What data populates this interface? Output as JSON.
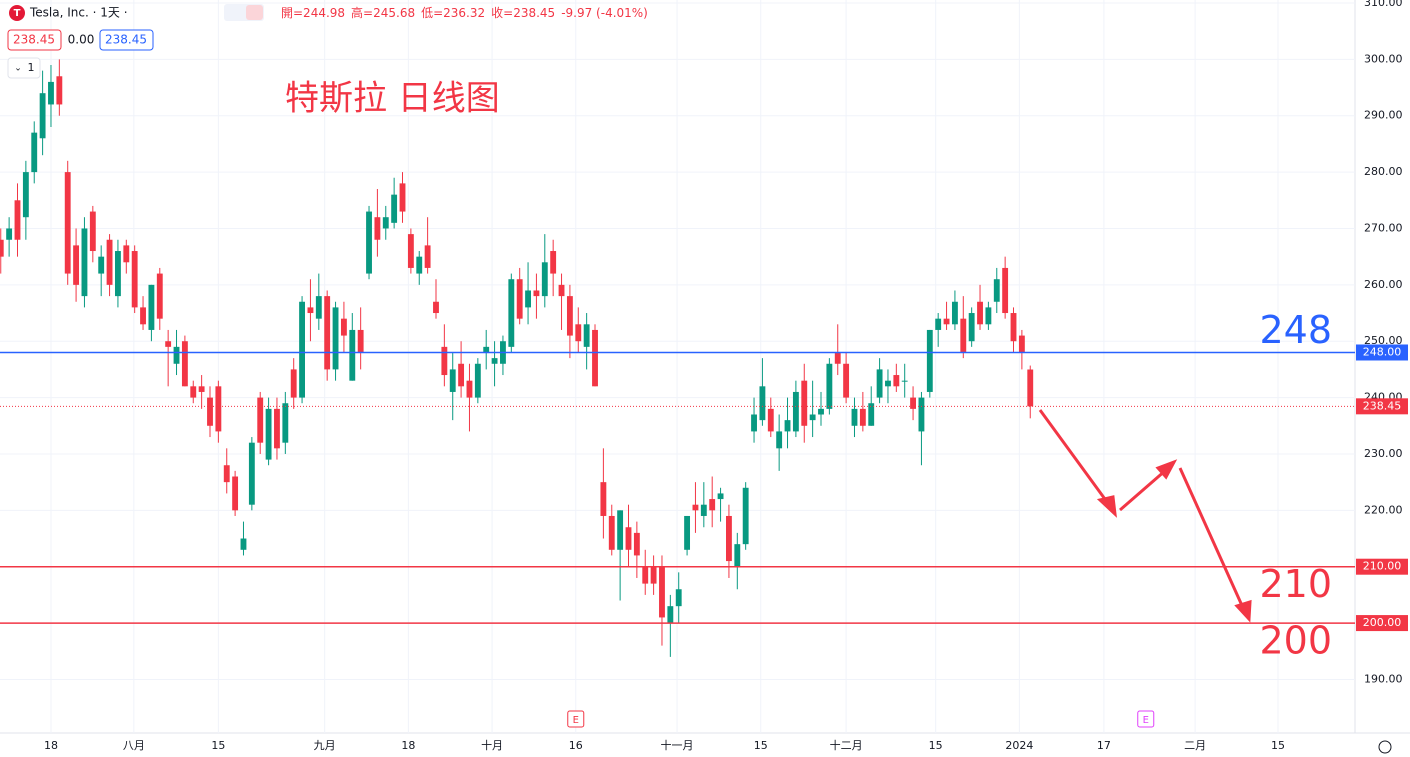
{
  "header": {
    "symbol": "Tesla, Inc. · 1天 ·",
    "ohlc": [
      "開=244.98",
      "高=245.68",
      "低=236.32",
      "收=238.45"
    ],
    "change": "-9.97 (-4.01%)",
    "price_boxes": [
      "238.45",
      "0.00",
      "238.45"
    ],
    "interval": "1"
  },
  "chart_data": {
    "type": "candlestick",
    "title": "特斯拉 日线图",
    "up_color": "#089981",
    "down_color": "#f23645",
    "xlim": [
      -6.09,
      155.8
    ],
    "ylim": [
      180.5,
      310.53
    ],
    "grid": true,
    "yticks": [
      {
        "value": 190,
        "label": "190.00"
      },
      {
        "value": 200,
        "label": "200.00"
      },
      {
        "value": 210,
        "label": "210.00"
      },
      {
        "value": 220,
        "label": "220.00"
      },
      {
        "value": 230,
        "label": "230.00"
      },
      {
        "value": 240,
        "label": "240.00"
      },
      {
        "value": 250,
        "label": "250.00"
      },
      {
        "value": 260,
        "label": "260.00"
      },
      {
        "value": 270,
        "label": "270.00"
      },
      {
        "value": 280,
        "label": "280.00"
      },
      {
        "value": 290,
        "label": "290.00"
      },
      {
        "value": 300,
        "label": "300.00"
      },
      {
        "value": 310,
        "label": "310.00"
      }
    ],
    "xticks": [
      {
        "value": 0,
        "label": "18"
      },
      {
        "value": 9.9,
        "label": "八月"
      },
      {
        "value": 20,
        "label": "15"
      },
      {
        "value": 32.7,
        "label": "九月"
      },
      {
        "value": 42.7,
        "label": "18"
      },
      {
        "value": 52.7,
        "label": "十月"
      },
      {
        "value": 62.7,
        "label": "16"
      },
      {
        "value": 74.8,
        "label": "十一月"
      },
      {
        "value": 84.8,
        "label": "15"
      },
      {
        "value": 95,
        "label": "十二月"
      },
      {
        "value": 105.7,
        "label": "15"
      },
      {
        "value": 115.7,
        "label": "2024"
      },
      {
        "value": 125.8,
        "label": "17"
      },
      {
        "value": 136.7,
        "label": "二月"
      },
      {
        "value": 146.6,
        "label": "15"
      }
    ],
    "horizontal_lines": [
      {
        "value": 248,
        "label": "248.00",
        "note": "248",
        "color": "#2962ff"
      },
      {
        "value": 210,
        "label": "210.00",
        "note": "210",
        "color": "#f23645"
      },
      {
        "value": 200,
        "label": "200.00",
        "note": "200",
        "color": "#f23645"
      }
    ],
    "last_price": {
      "value": 238.45,
      "label": "238.45",
      "color": "#f23645"
    },
    "events": [
      {
        "x": 62.7,
        "label": "E",
        "color": "#f23645"
      },
      {
        "x": 130.8,
        "label": "E",
        "color": "#e040fb"
      }
    ],
    "x": [
      -6,
      -5,
      -4,
      -3,
      -2,
      -1,
      0,
      1,
      2,
      3,
      4,
      5,
      6,
      7,
      8,
      9,
      10,
      11,
      12,
      13,
      14,
      15,
      16,
      17,
      18,
      19,
      20,
      21,
      22,
      23,
      24,
      25,
      26,
      27,
      28,
      29,
      30,
      31,
      32,
      33,
      34,
      35,
      36,
      37,
      38,
      39,
      40,
      41,
      42,
      43,
      44,
      45,
      46,
      47,
      48,
      49,
      50,
      51,
      52,
      53,
      54,
      55,
      56,
      57,
      58,
      59,
      60,
      61,
      62,
      63,
      64,
      65,
      66,
      67,
      68,
      69,
      70,
      71,
      72,
      73,
      74,
      75,
      76,
      77,
      78,
      79,
      80,
      81,
      82,
      83,
      84,
      85,
      86,
      87,
      88,
      89,
      90,
      91,
      92,
      93,
      94,
      95,
      96,
      97,
      98,
      99,
      100,
      101,
      102,
      103,
      104,
      105,
      106,
      107,
      108,
      109,
      110,
      111,
      112,
      113,
      114,
      115,
      116,
      117
    ],
    "candles": [
      [
        268,
        270,
        262,
        265
      ],
      [
        268,
        272,
        265,
        270
      ],
      [
        275,
        278,
        265,
        268
      ],
      [
        272,
        282,
        268,
        280
      ],
      [
        280,
        289,
        278,
        287
      ],
      [
        286,
        298,
        283,
        294
      ],
      [
        292,
        299,
        288,
        296
      ],
      [
        297,
        300,
        290,
        292
      ],
      [
        280,
        282,
        260,
        262
      ],
      [
        267,
        270,
        257,
        260
      ],
      [
        258,
        272,
        256,
        270
      ],
      [
        273,
        274,
        264,
        266
      ],
      [
        262,
        267,
        258,
        265
      ],
      [
        268,
        269,
        258,
        260
      ],
      [
        258,
        268,
        256,
        266
      ],
      [
        267,
        268,
        262,
        264
      ],
      [
        266,
        267,
        255,
        256
      ],
      [
        256,
        258,
        252,
        253
      ],
      [
        252,
        260,
        250,
        260
      ],
      [
        262,
        263,
        252,
        254
      ],
      [
        250,
        252,
        242,
        249
      ],
      [
        246,
        252,
        244,
        249
      ],
      [
        250,
        251,
        242,
        242
      ],
      [
        242,
        243,
        239,
        240
      ],
      [
        242,
        244,
        238,
        241
      ],
      [
        240,
        242,
        233,
        235
      ],
      [
        242,
        243,
        232,
        234
      ],
      [
        228,
        231,
        223,
        225
      ],
      [
        226,
        227,
        219,
        220
      ],
      [
        213,
        218,
        212,
        215
      ],
      [
        221,
        233,
        220,
        232
      ],
      [
        240,
        241,
        230,
        232
      ],
      [
        229,
        240,
        228,
        238
      ],
      [
        238,
        240,
        229,
        231
      ],
      [
        232,
        241,
        230,
        239
      ],
      [
        245,
        247,
        238,
        240
      ],
      [
        240,
        258,
        239,
        257
      ],
      [
        256,
        261,
        250,
        255
      ],
      [
        254,
        262,
        252,
        258
      ],
      [
        258,
        259,
        243,
        245
      ],
      [
        245,
        257,
        243,
        256
      ],
      [
        254,
        257,
        248,
        251
      ],
      [
        243,
        255,
        243,
        252
      ],
      [
        252,
        256,
        245,
        248
      ],
      [
        262,
        274,
        261,
        273
      ],
      [
        272,
        277,
        265,
        268
      ],
      [
        270,
        274,
        268,
        272
      ],
      [
        271,
        279,
        270,
        276
      ],
      [
        278,
        280,
        271,
        273
      ],
      [
        269,
        270,
        262,
        263
      ],
      [
        262,
        266,
        260,
        265
      ],
      [
        267,
        272,
        262,
        263
      ],
      [
        257,
        261,
        254,
        255
      ],
      [
        249,
        253,
        242,
        244
      ],
      [
        241,
        248,
        236,
        245
      ],
      [
        246,
        250,
        240,
        242
      ],
      [
        243,
        246,
        234,
        240
      ],
      [
        240,
        247,
        239,
        246
      ],
      [
        248,
        252,
        245,
        249
      ],
      [
        246,
        250,
        242,
        247
      ],
      [
        246,
        251,
        244,
        250
      ],
      [
        249,
        262,
        248,
        261
      ],
      [
        261,
        263,
        253,
        254
      ],
      [
        256,
        264,
        253,
        259
      ],
      [
        259,
        262,
        254,
        258
      ],
      [
        258,
        269,
        256,
        264
      ],
      [
        266,
        268,
        258,
        262
      ],
      [
        260,
        262,
        252,
        258
      ],
      [
        258,
        260,
        247,
        251
      ],
      [
        253,
        256,
        248,
        250
      ],
      [
        249,
        255,
        245,
        253
      ],
      [
        252,
        253,
        242,
        242
      ],
      [
        225,
        231,
        215,
        219
      ],
      [
        219,
        221,
        212,
        213
      ],
      [
        213,
        220,
        204,
        220
      ],
      [
        217,
        221,
        210,
        213
      ],
      [
        216,
        218,
        208,
        212
      ],
      [
        210,
        213,
        205,
        207
      ],
      [
        210,
        212,
        205,
        207
      ],
      [
        210,
        212,
        196,
        201
      ],
      [
        200,
        205,
        194,
        203
      ],
      [
        203,
        209,
        200,
        206
      ],
      [
        213,
        219,
        212,
        219
      ],
      [
        221,
        225,
        216,
        220
      ],
      [
        219,
        225,
        217,
        221
      ],
      [
        222,
        226,
        217,
        220
      ],
      [
        222,
        224,
        218,
        223
      ],
      [
        219,
        221,
        208,
        211
      ],
      [
        210,
        216,
        206,
        214
      ],
      [
        214,
        225,
        213,
        224
      ],
      [
        234,
        240,
        232,
        237
      ],
      [
        236,
        247,
        235,
        242
      ],
      [
        238,
        240,
        233,
        234
      ],
      [
        231,
        237,
        227,
        234
      ],
      [
        234,
        240,
        231,
        236
      ],
      [
        234,
        243,
        233,
        241
      ],
      [
        243,
        246,
        232,
        235
      ],
      [
        236,
        243,
        233,
        237
      ],
      [
        237,
        241,
        235,
        238
      ],
      [
        238,
        247,
        237,
        246
      ],
      [
        248,
        253,
        244,
        246
      ],
      [
        246,
        248,
        239,
        240
      ],
      [
        235,
        240,
        233,
        238
      ],
      [
        238,
        241,
        234,
        235
      ],
      [
        235,
        242,
        235,
        239
      ],
      [
        240,
        247,
        239,
        245
      ],
      [
        242,
        245,
        239,
        243
      ],
      [
        244,
        246,
        241,
        242
      ],
      [
        243,
        246,
        240,
        243
      ],
      [
        240,
        242,
        236,
        238
      ],
      [
        234,
        241,
        228,
        240
      ],
      [
        241,
        252,
        240,
        252
      ],
      [
        252,
        255,
        249,
        254
      ],
      [
        254,
        257,
        252,
        253
      ],
      [
        253,
        259,
        252,
        257
      ],
      [
        254,
        258,
        247,
        248
      ],
      [
        250,
        256,
        249,
        255
      ],
      [
        257,
        260,
        252,
        253
      ],
      [
        253,
        257,
        252,
        256
      ],
      [
        257,
        263,
        255,
        261
      ],
      [
        263,
        265,
        254,
        255
      ],
      [
        255,
        256,
        248,
        250
      ],
      [
        251,
        252,
        245,
        248
      ],
      [
        244.98,
        245.68,
        236.32,
        238.45
      ]
    ]
  }
}
